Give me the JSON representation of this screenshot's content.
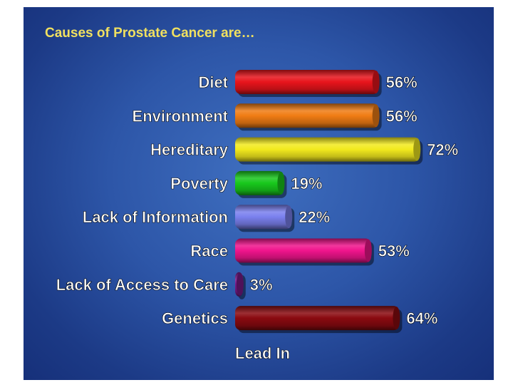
{
  "chart_data": {
    "type": "bar",
    "orientation": "horizontal",
    "title": "Causes of Prostate Cancer are…",
    "categories": [
      "Diet",
      "Environment",
      "Hereditary",
      "Poverty",
      "Lack of Information",
      "Race",
      "Lack of Access to Care",
      "Genetics"
    ],
    "values": [
      56,
      56,
      72,
      19,
      22,
      53,
      3,
      64
    ],
    "value_labels": [
      "56%",
      "56%",
      "72%",
      "19%",
      "22%",
      "53%",
      "3%",
      "64%"
    ],
    "colors": [
      "#e8141c",
      "#f07c14",
      "#f2ea1e",
      "#18c81c",
      "#7a80ee",
      "#f0148c",
      "#7a1a8a",
      "#8a0a10"
    ],
    "footer": "Lead In",
    "title_color": "#f0e060",
    "label_color": "#ffffff",
    "xlim": [
      0,
      100
    ],
    "grid": false,
    "legend": "none"
  }
}
